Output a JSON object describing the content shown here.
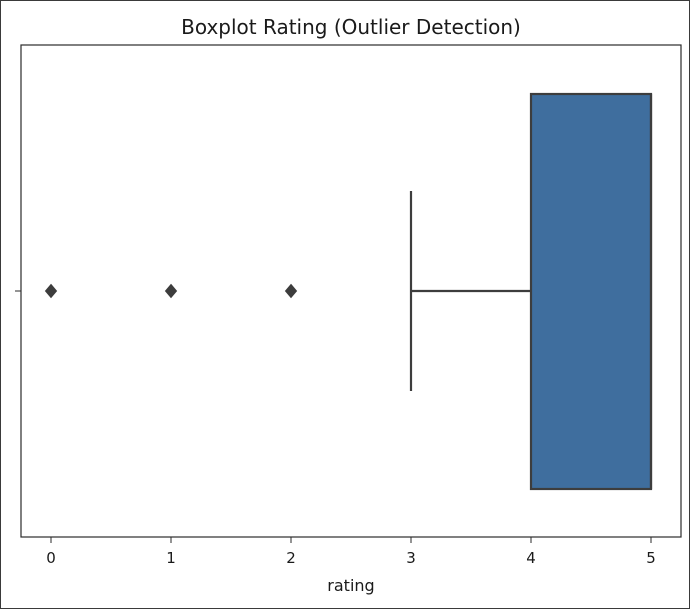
{
  "chart_data": {
    "type": "boxplot",
    "title": "Boxplot Rating (Outlier Detection)",
    "xlabel": "rating",
    "ylabel": "",
    "orientation": "horizontal",
    "xlim": [
      -0.25,
      5.25
    ],
    "xticks": [
      0,
      1,
      2,
      3,
      4,
      5
    ],
    "xtick_labels": [
      "0",
      "1",
      "2",
      "3",
      "4",
      "5"
    ],
    "grid": false,
    "box": {
      "whisker_low": 3,
      "q1": 4,
      "median": 5,
      "q3": 5,
      "whisker_high": 5
    },
    "outliers": [
      0,
      1,
      2
    ],
    "colors": {
      "box_fill": "#3f6e9e",
      "line": "#3d3d3d",
      "outlier": "#3d3d3d"
    }
  }
}
